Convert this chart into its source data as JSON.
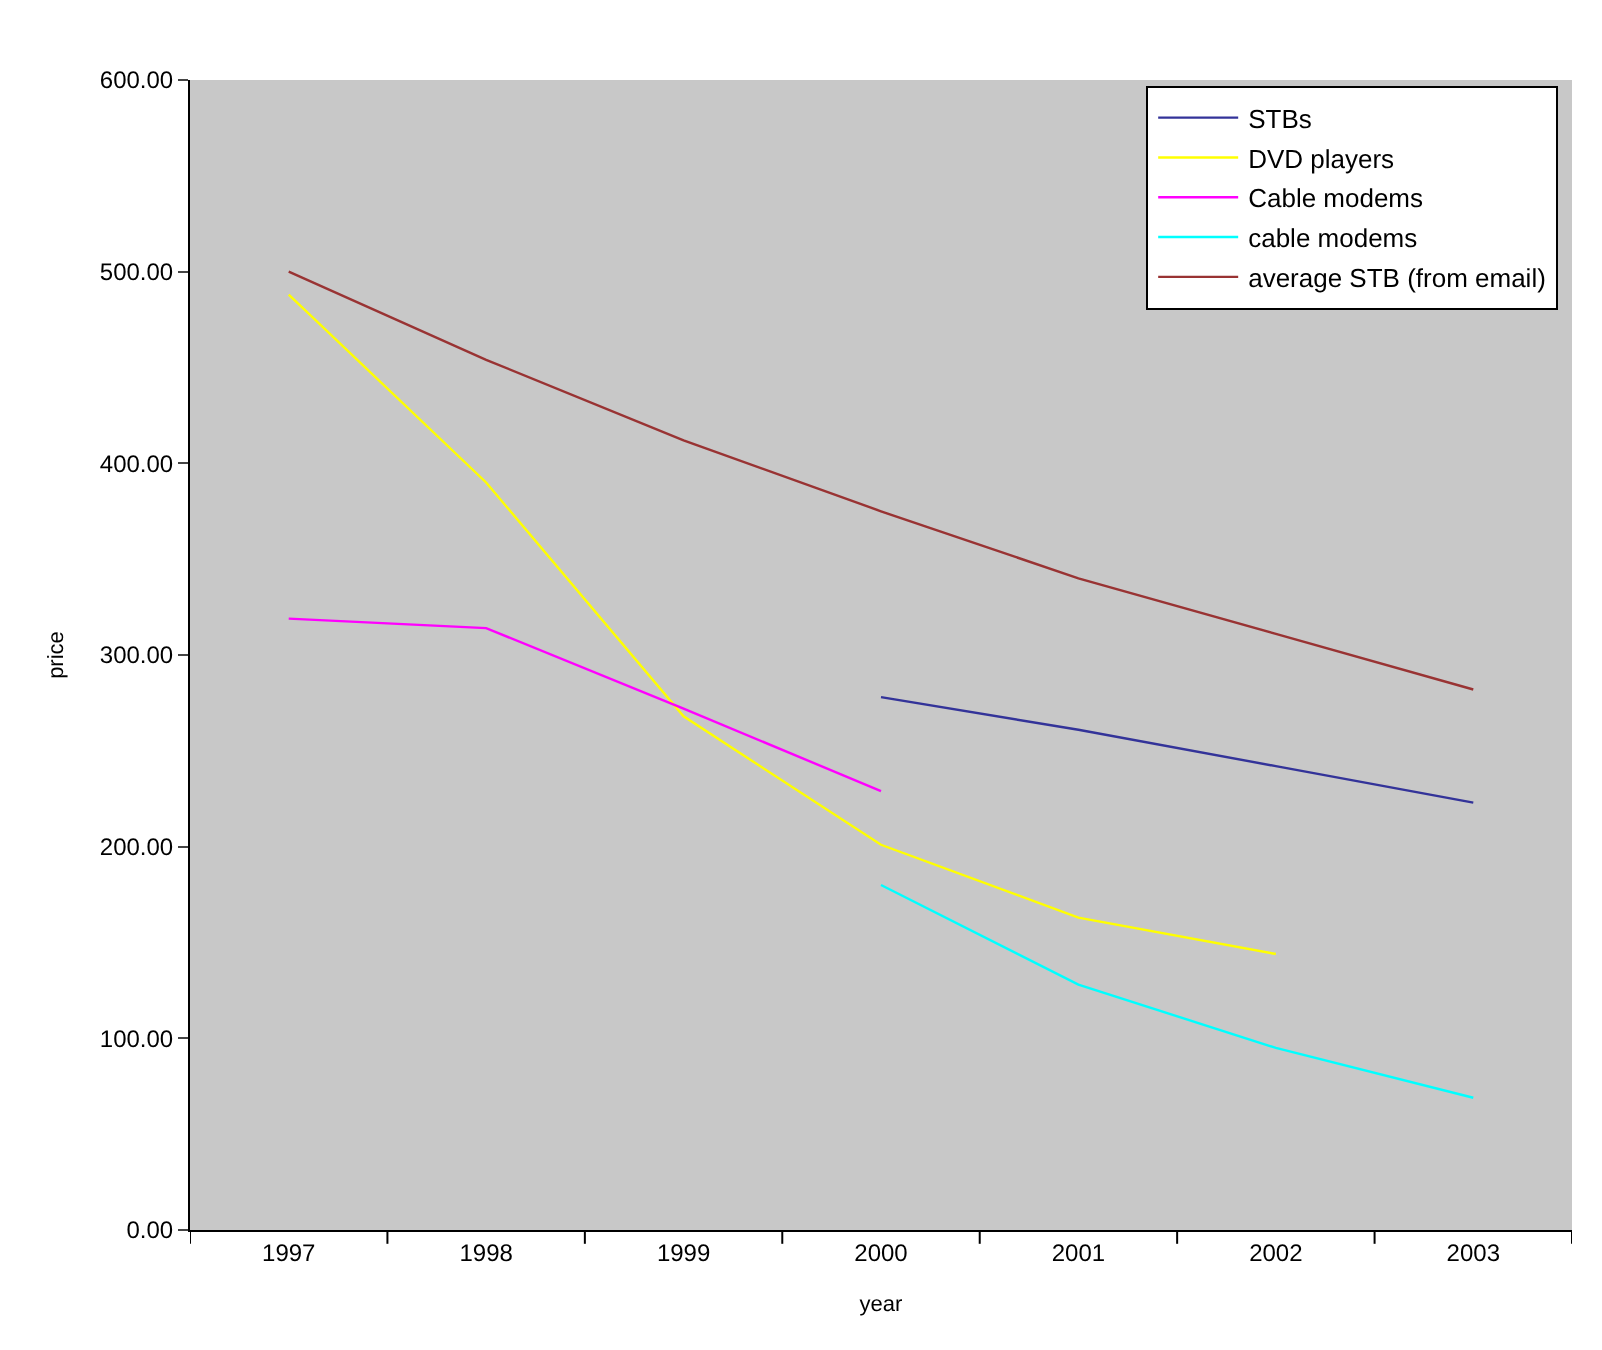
{
  "chart_data": {
    "type": "line",
    "xlabel": "year",
    "ylabel": "price",
    "categories": [
      "1997",
      "1998",
      "1999",
      "2000",
      "2001",
      "2002",
      "2003"
    ],
    "ylim": [
      0,
      600
    ],
    "yticks": [
      {
        "value": 0,
        "label": "0.00"
      },
      {
        "value": 100,
        "label": "100.00"
      },
      {
        "value": 200,
        "label": "200.00"
      },
      {
        "value": 300,
        "label": "300.00"
      },
      {
        "value": 400,
        "label": "400.00"
      },
      {
        "value": 500,
        "label": "500.00"
      },
      {
        "value": 600,
        "label": "600.00"
      }
    ],
    "grid": false,
    "legend": "top right",
    "marker": "none",
    "line_style": "solid",
    "series": [
      {
        "name": "STBs",
        "color": "#333399",
        "values": [
          null,
          null,
          null,
          278,
          261,
          242,
          223
        ]
      },
      {
        "name": "DVD players",
        "color": "#ffff00",
        "values": [
          488,
          390,
          268,
          201,
          163,
          144,
          null
        ]
      },
      {
        "name": "Cable modems",
        "color": "#ff00ff",
        "values": [
          319,
          314,
          272,
          229,
          null,
          null,
          null
        ]
      },
      {
        "name": "cable modems",
        "color": "#00ffff",
        "values": [
          null,
          null,
          null,
          180,
          128,
          95,
          69
        ]
      },
      {
        "name": "average STB (from email)",
        "color": "#993333",
        "values": [
          500,
          454,
          412,
          375,
          340,
          311,
          282
        ]
      }
    ]
  }
}
